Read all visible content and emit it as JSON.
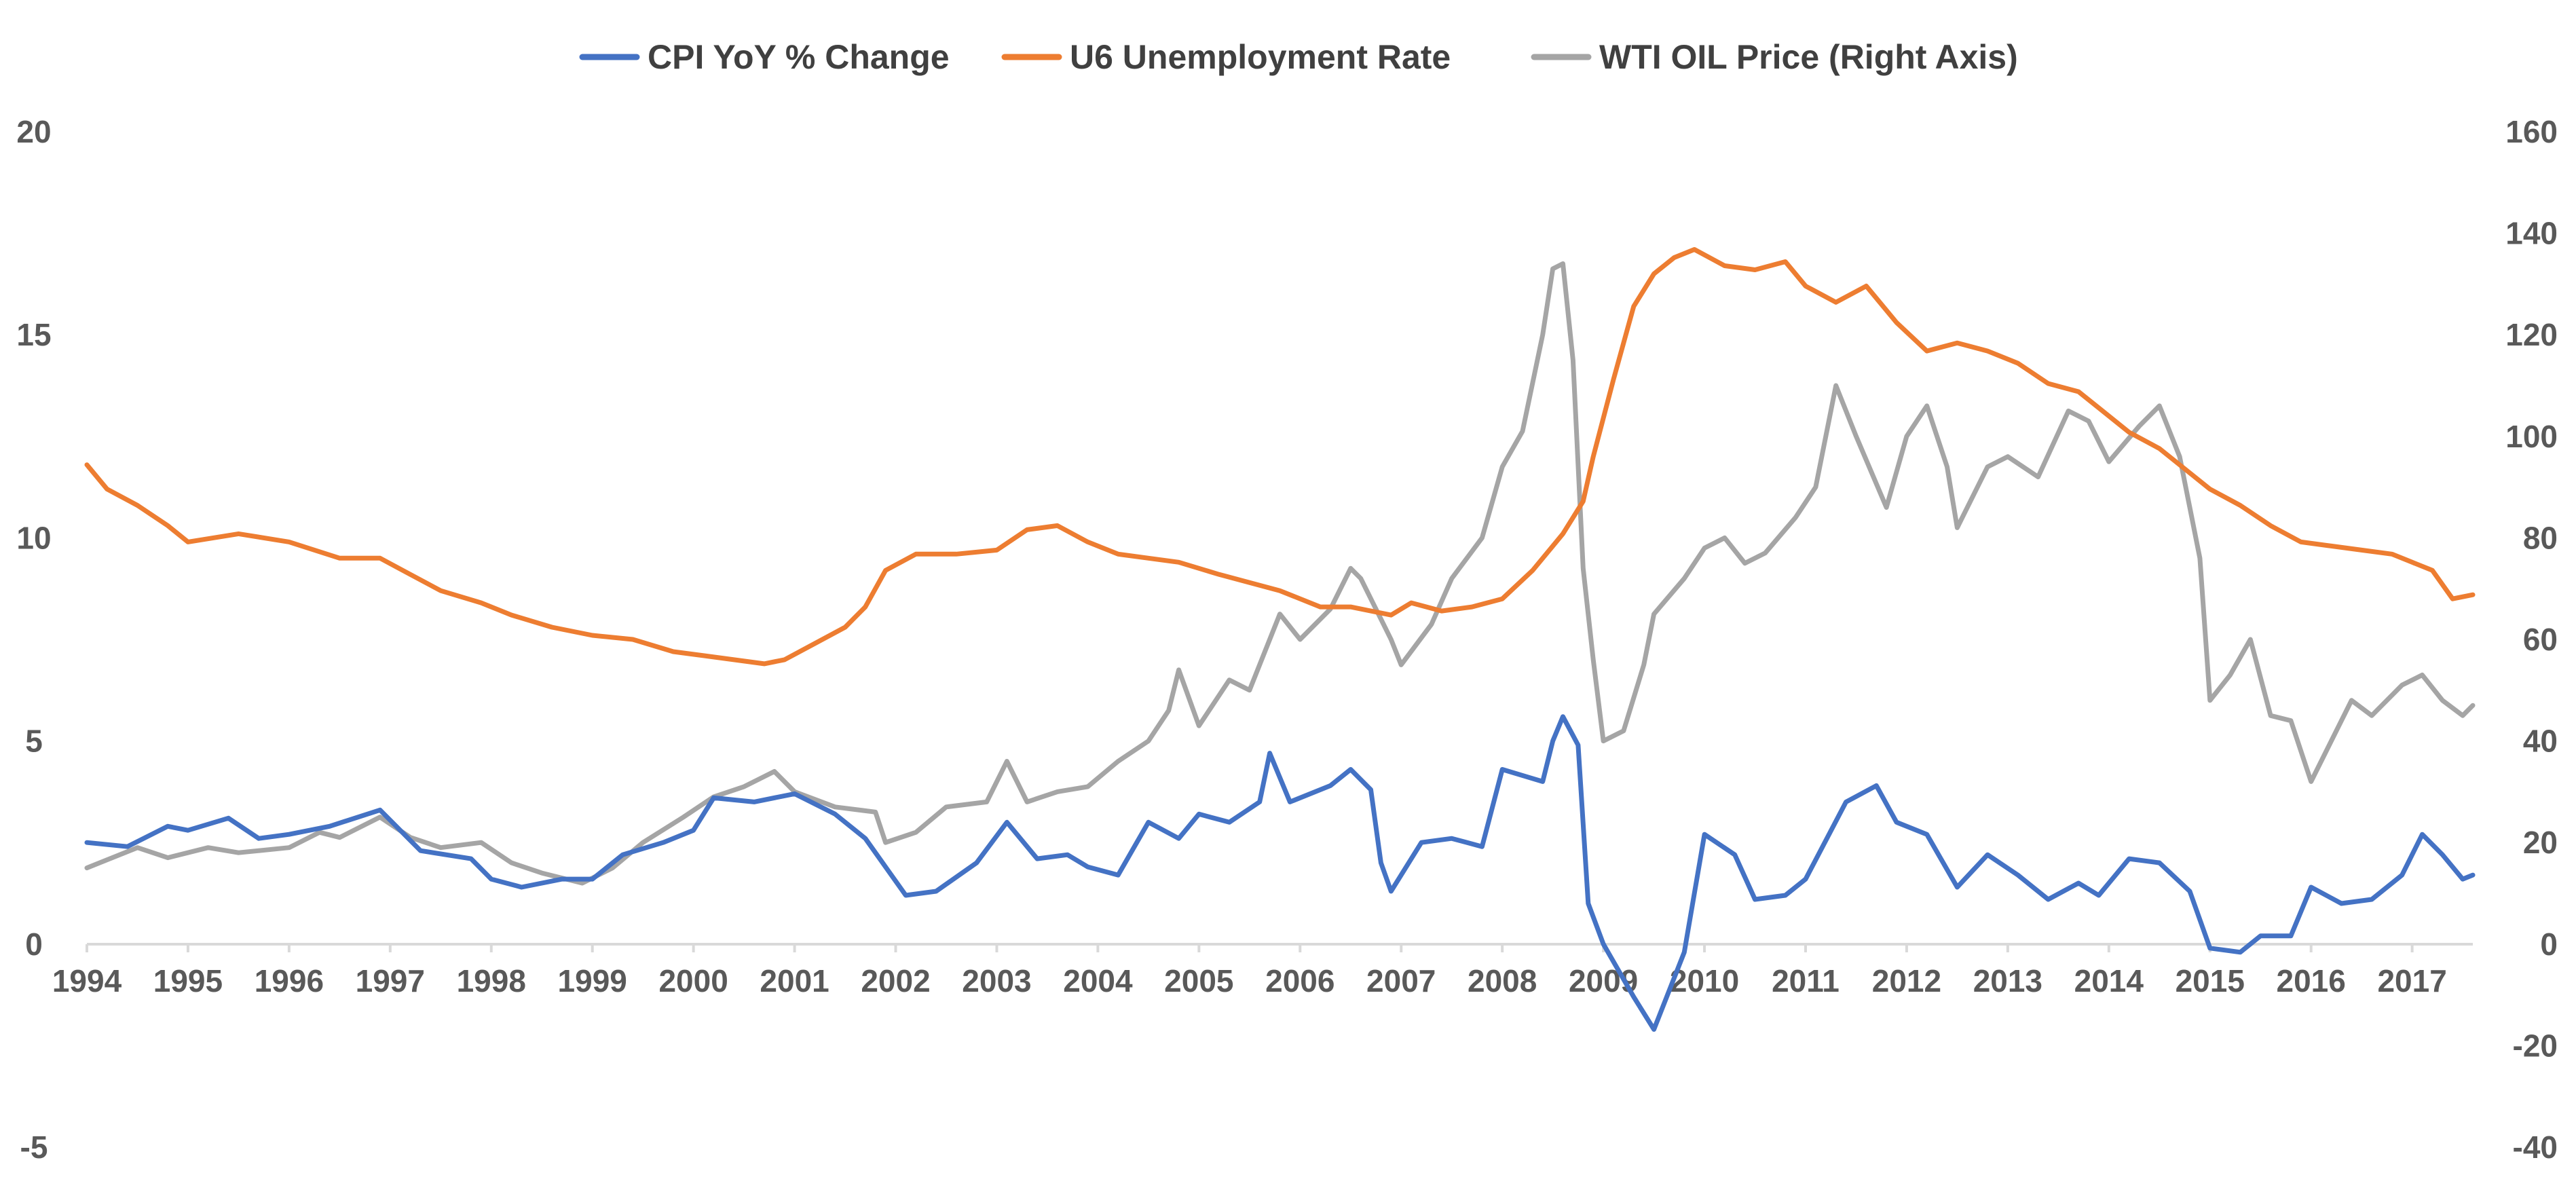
{
  "chart_data": {
    "type": "line",
    "title": "",
    "legend_position": "top",
    "grid": false,
    "x_axis": {
      "min": 1994,
      "max": 2017.6,
      "tick_labels": [
        "1994",
        "1995",
        "1996",
        "1997",
        "1998",
        "1999",
        "2000",
        "2001",
        "2002",
        "2003",
        "2004",
        "2005",
        "2006",
        "2007",
        "2008",
        "2009",
        "2010",
        "2011",
        "2012",
        "2013",
        "2014",
        "2015",
        "2016",
        "2017"
      ]
    },
    "y_axis_left": {
      "min": -5,
      "max": 20,
      "tick_labels": [
        "-5",
        "0",
        "5",
        "10",
        "15",
        "20"
      ]
    },
    "y_axis_right": {
      "min": -40,
      "max": 160,
      "tick_labels": [
        "-40",
        "-20",
        "0",
        "20",
        "40",
        "60",
        "80",
        "100",
        "120",
        "140",
        "160"
      ]
    },
    "series": [
      {
        "name": "CPI YoY % Change",
        "axis": "left",
        "color": "#4472C4",
        "points": [
          [
            1994.0,
            2.5
          ],
          [
            1994.4,
            2.4
          ],
          [
            1994.8,
            2.9
          ],
          [
            1995.0,
            2.8
          ],
          [
            1995.4,
            3.1
          ],
          [
            1995.7,
            2.6
          ],
          [
            1996.0,
            2.7
          ],
          [
            1996.4,
            2.9
          ],
          [
            1996.9,
            3.3
          ],
          [
            1997.3,
            2.3
          ],
          [
            1997.8,
            2.1
          ],
          [
            1998.0,
            1.6
          ],
          [
            1998.3,
            1.4
          ],
          [
            1998.7,
            1.6
          ],
          [
            1999.0,
            1.6
          ],
          [
            1999.3,
            2.2
          ],
          [
            1999.7,
            2.5
          ],
          [
            2000.0,
            2.8
          ],
          [
            2000.2,
            3.6
          ],
          [
            2000.6,
            3.5
          ],
          [
            2001.0,
            3.7
          ],
          [
            2001.4,
            3.2
          ],
          [
            2001.7,
            2.6
          ],
          [
            2001.9,
            1.9
          ],
          [
            2002.1,
            1.2
          ],
          [
            2002.4,
            1.3
          ],
          [
            2002.8,
            2.0
          ],
          [
            2003.1,
            3.0
          ],
          [
            2003.4,
            2.1
          ],
          [
            2003.7,
            2.2
          ],
          [
            2003.9,
            1.9
          ],
          [
            2004.2,
            1.7
          ],
          [
            2004.5,
            3.0
          ],
          [
            2004.8,
            2.6
          ],
          [
            2005.0,
            3.2
          ],
          [
            2005.3,
            3.0
          ],
          [
            2005.6,
            3.5
          ],
          [
            2005.7,
            4.7
          ],
          [
            2005.9,
            3.5
          ],
          [
            2006.3,
            3.9
          ],
          [
            2006.5,
            4.3
          ],
          [
            2006.7,
            3.8
          ],
          [
            2006.8,
            2.0
          ],
          [
            2006.9,
            1.3
          ],
          [
            2007.2,
            2.5
          ],
          [
            2007.5,
            2.6
          ],
          [
            2007.8,
            2.4
          ],
          [
            2008.0,
            4.3
          ],
          [
            2008.4,
            4.0
          ],
          [
            2008.5,
            5.0
          ],
          [
            2008.6,
            5.6
          ],
          [
            2008.75,
            4.9
          ],
          [
            2008.85,
            1.0
          ],
          [
            2009.0,
            0.0
          ],
          [
            2009.3,
            -1.3
          ],
          [
            2009.5,
            -2.1
          ],
          [
            2009.8,
            -0.2
          ],
          [
            2010.0,
            2.7
          ],
          [
            2010.3,
            2.2
          ],
          [
            2010.5,
            1.1
          ],
          [
            2010.8,
            1.2
          ],
          [
            2011.0,
            1.6
          ],
          [
            2011.4,
            3.5
          ],
          [
            2011.7,
            3.9
          ],
          [
            2011.9,
            3.0
          ],
          [
            2012.2,
            2.7
          ],
          [
            2012.5,
            1.4
          ],
          [
            2012.8,
            2.2
          ],
          [
            2013.1,
            1.7
          ],
          [
            2013.4,
            1.1
          ],
          [
            2013.7,
            1.5
          ],
          [
            2013.9,
            1.2
          ],
          [
            2014.2,
            2.1
          ],
          [
            2014.5,
            2.0
          ],
          [
            2014.8,
            1.3
          ],
          [
            2015.0,
            -0.1
          ],
          [
            2015.3,
            -0.2
          ],
          [
            2015.5,
            0.2
          ],
          [
            2015.8,
            0.2
          ],
          [
            2016.0,
            1.4
          ],
          [
            2016.3,
            1.0
          ],
          [
            2016.6,
            1.1
          ],
          [
            2016.9,
            1.7
          ],
          [
            2017.1,
            2.7
          ],
          [
            2017.3,
            2.2
          ],
          [
            2017.5,
            1.6
          ],
          [
            2017.6,
            1.7
          ]
        ]
      },
      {
        "name": "U6 Unemployment Rate",
        "axis": "left",
        "color": "#ED7D31",
        "points": [
          [
            1994.0,
            11.8
          ],
          [
            1994.2,
            11.2
          ],
          [
            1994.5,
            10.8
          ],
          [
            1994.8,
            10.3
          ],
          [
            1995.0,
            9.9
          ],
          [
            1995.5,
            10.1
          ],
          [
            1996.0,
            9.9
          ],
          [
            1996.5,
            9.5
          ],
          [
            1996.9,
            9.5
          ],
          [
            1997.2,
            9.1
          ],
          [
            1997.5,
            8.7
          ],
          [
            1997.9,
            8.4
          ],
          [
            1998.2,
            8.1
          ],
          [
            1998.6,
            7.8
          ],
          [
            1999.0,
            7.6
          ],
          [
            1999.4,
            7.5
          ],
          [
            1999.8,
            7.2
          ],
          [
            2000.1,
            7.1
          ],
          [
            2000.4,
            7.0
          ],
          [
            2000.7,
            6.9
          ],
          [
            2000.9,
            7.0
          ],
          [
            2001.2,
            7.4
          ],
          [
            2001.5,
            7.8
          ],
          [
            2001.7,
            8.3
          ],
          [
            2001.9,
            9.2
          ],
          [
            2002.2,
            9.6
          ],
          [
            2002.6,
            9.6
          ],
          [
            2003.0,
            9.7
          ],
          [
            2003.3,
            10.2
          ],
          [
            2003.6,
            10.3
          ],
          [
            2003.9,
            9.9
          ],
          [
            2004.2,
            9.6
          ],
          [
            2004.5,
            9.5
          ],
          [
            2004.8,
            9.4
          ],
          [
            2005.2,
            9.1
          ],
          [
            2005.5,
            8.9
          ],
          [
            2005.8,
            8.7
          ],
          [
            2006.2,
            8.3
          ],
          [
            2006.5,
            8.3
          ],
          [
            2006.9,
            8.1
          ],
          [
            2007.1,
            8.4
          ],
          [
            2007.4,
            8.2
          ],
          [
            2007.7,
            8.3
          ],
          [
            2008.0,
            8.5
          ],
          [
            2008.3,
            9.2
          ],
          [
            2008.6,
            10.1
          ],
          [
            2008.8,
            10.9
          ],
          [
            2008.9,
            12.0
          ],
          [
            2009.1,
            13.9
          ],
          [
            2009.3,
            15.7
          ],
          [
            2009.5,
            16.5
          ],
          [
            2009.7,
            16.9
          ],
          [
            2009.9,
            17.1
          ],
          [
            2010.2,
            16.7
          ],
          [
            2010.5,
            16.6
          ],
          [
            2010.8,
            16.8
          ],
          [
            2011.0,
            16.2
          ],
          [
            2011.3,
            15.8
          ],
          [
            2011.6,
            16.2
          ],
          [
            2011.9,
            15.3
          ],
          [
            2012.2,
            14.6
          ],
          [
            2012.5,
            14.8
          ],
          [
            2012.8,
            14.6
          ],
          [
            2013.1,
            14.3
          ],
          [
            2013.4,
            13.8
          ],
          [
            2013.7,
            13.6
          ],
          [
            2013.9,
            13.2
          ],
          [
            2014.2,
            12.6
          ],
          [
            2014.5,
            12.2
          ],
          [
            2014.8,
            11.6
          ],
          [
            2015.0,
            11.2
          ],
          [
            2015.3,
            10.8
          ],
          [
            2015.6,
            10.3
          ],
          [
            2015.9,
            9.9
          ],
          [
            2016.2,
            9.8
          ],
          [
            2016.5,
            9.7
          ],
          [
            2016.8,
            9.6
          ],
          [
            2017.0,
            9.4
          ],
          [
            2017.2,
            9.2
          ],
          [
            2017.4,
            8.5
          ],
          [
            2017.6,
            8.6
          ]
        ]
      },
      {
        "name": "WTI OIL Price (Right Axis)",
        "axis": "right",
        "color": "#A5A5A5",
        "points": [
          [
            1994.0,
            15
          ],
          [
            1994.5,
            19
          ],
          [
            1994.8,
            17
          ],
          [
            1995.2,
            19
          ],
          [
            1995.5,
            18
          ],
          [
            1996.0,
            19
          ],
          [
            1996.3,
            22
          ],
          [
            1996.5,
            21
          ],
          [
            1996.9,
            25
          ],
          [
            1997.2,
            21
          ],
          [
            1997.5,
            19
          ],
          [
            1997.9,
            20
          ],
          [
            1998.2,
            16
          ],
          [
            1998.5,
            14
          ],
          [
            1998.9,
            12
          ],
          [
            1999.2,
            15
          ],
          [
            1999.5,
            20
          ],
          [
            1999.9,
            25
          ],
          [
            2000.2,
            29
          ],
          [
            2000.5,
            31
          ],
          [
            2000.8,
            34
          ],
          [
            2001.0,
            30
          ],
          [
            2001.4,
            27
          ],
          [
            2001.8,
            26
          ],
          [
            2001.9,
            20
          ],
          [
            2002.2,
            22
          ],
          [
            2002.5,
            27
          ],
          [
            2002.9,
            28
          ],
          [
            2003.1,
            36
          ],
          [
            2003.3,
            28
          ],
          [
            2003.6,
            30
          ],
          [
            2003.9,
            31
          ],
          [
            2004.2,
            36
          ],
          [
            2004.5,
            40
          ],
          [
            2004.7,
            46
          ],
          [
            2004.8,
            54
          ],
          [
            2005.0,
            43
          ],
          [
            2005.3,
            52
          ],
          [
            2005.5,
            50
          ],
          [
            2005.8,
            65
          ],
          [
            2006.0,
            60
          ],
          [
            2006.3,
            66
          ],
          [
            2006.5,
            74
          ],
          [
            2006.6,
            72
          ],
          [
            2006.9,
            60
          ],
          [
            2007.0,
            55
          ],
          [
            2007.3,
            63
          ],
          [
            2007.5,
            72
          ],
          [
            2007.8,
            80
          ],
          [
            2008.0,
            94
          ],
          [
            2008.2,
            101
          ],
          [
            2008.4,
            120
          ],
          [
            2008.5,
            133
          ],
          [
            2008.6,
            134
          ],
          [
            2008.7,
            115
          ],
          [
            2008.8,
            74
          ],
          [
            2008.9,
            56
          ],
          [
            2009.0,
            40
          ],
          [
            2009.2,
            42
          ],
          [
            2009.4,
            55
          ],
          [
            2009.5,
            65
          ],
          [
            2009.8,
            72
          ],
          [
            2010.0,
            78
          ],
          [
            2010.2,
            80
          ],
          [
            2010.4,
            75
          ],
          [
            2010.6,
            77
          ],
          [
            2010.9,
            84
          ],
          [
            2011.1,
            90
          ],
          [
            2011.3,
            110
          ],
          [
            2011.5,
            100
          ],
          [
            2011.8,
            86
          ],
          [
            2012.0,
            100
          ],
          [
            2012.2,
            106
          ],
          [
            2012.4,
            94
          ],
          [
            2012.5,
            82
          ],
          [
            2012.8,
            94
          ],
          [
            2013.0,
            96
          ],
          [
            2013.3,
            92
          ],
          [
            2013.6,
            105
          ],
          [
            2013.8,
            103
          ],
          [
            2014.0,
            95
          ],
          [
            2014.3,
            102
          ],
          [
            2014.5,
            106
          ],
          [
            2014.7,
            96
          ],
          [
            2014.9,
            76
          ],
          [
            2015.0,
            48
          ],
          [
            2015.2,
            53
          ],
          [
            2015.4,
            60
          ],
          [
            2015.6,
            45
          ],
          [
            2015.8,
            44
          ],
          [
            2016.0,
            32
          ],
          [
            2016.2,
            40
          ],
          [
            2016.4,
            48
          ],
          [
            2016.6,
            45
          ],
          [
            2016.9,
            51
          ],
          [
            2017.1,
            53
          ],
          [
            2017.3,
            48
          ],
          [
            2017.5,
            45
          ],
          [
            2017.6,
            47
          ]
        ]
      }
    ]
  }
}
